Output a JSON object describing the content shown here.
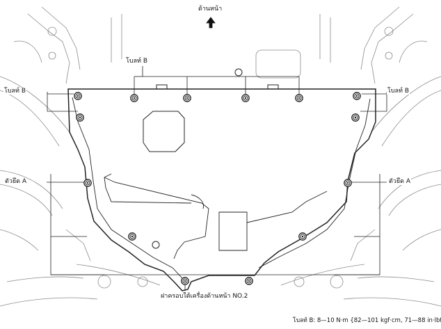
{
  "labels": {
    "front": "ด้านหน้า",
    "bolt_b_top": "โบลท์ B",
    "bolt_b_left": "โบลท์ B",
    "bolt_b_right": "โบลท์ B",
    "clip_a_left": "ตัวยึด A",
    "clip_a_right": "ตัวยึด A",
    "cover_name": "ฝาครอบใต้เครื่องด้านหน้า NO.2",
    "torque_spec": "โบลท์ B: 8—10 N·m {82—101 kgf·cm, 71—88 in·lbf}"
  }
}
